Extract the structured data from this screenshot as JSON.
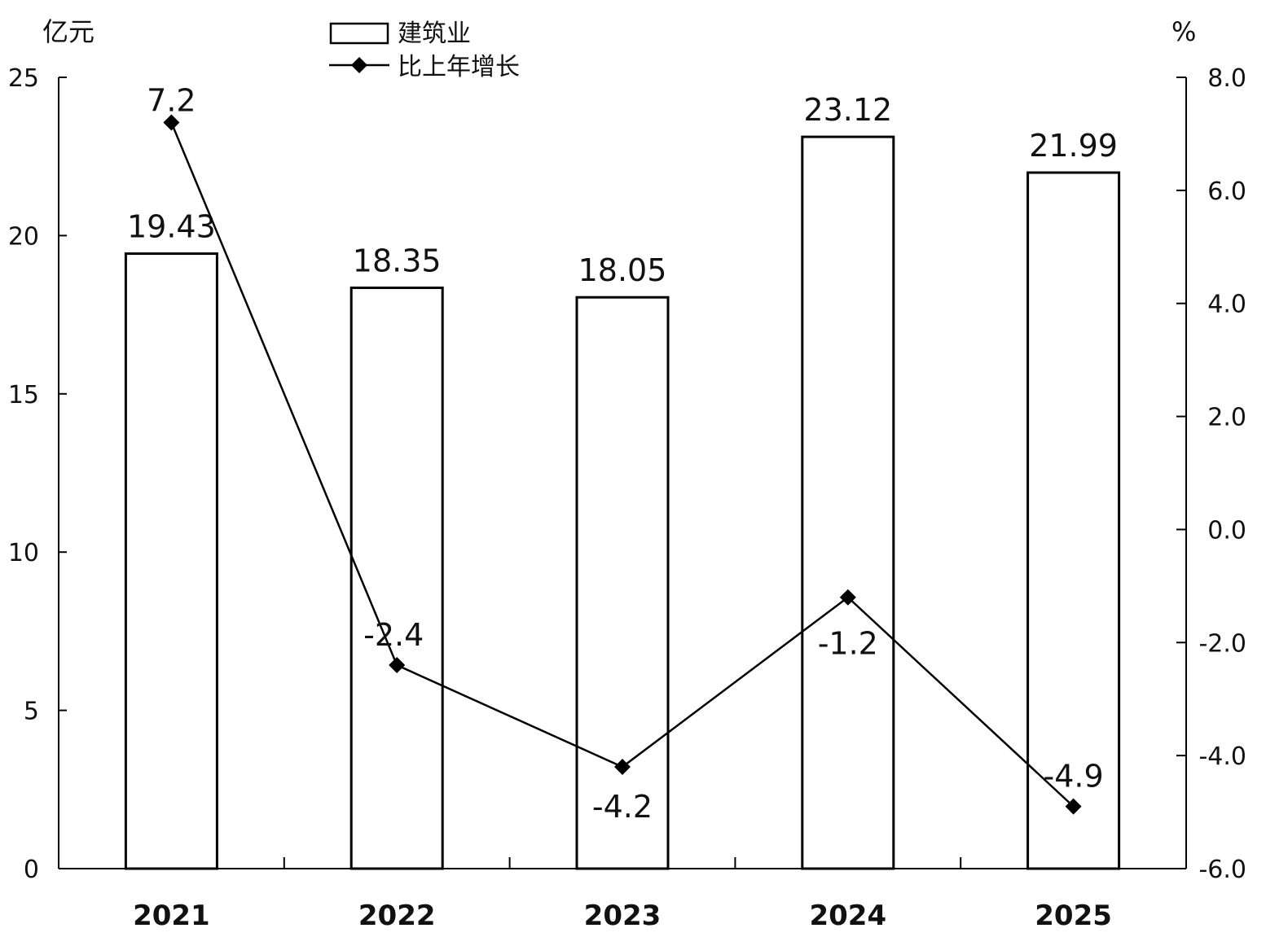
{
  "chart_data": {
    "type": "bar",
    "categories": [
      "2021",
      "2022",
      "2023",
      "2024",
      "2025"
    ],
    "series": [
      {
        "name": "建筑业",
        "type": "bar",
        "axis": "left",
        "values": [
          19.43,
          18.35,
          18.05,
          23.12,
          21.99
        ],
        "labels": [
          "19.43",
          "18.35",
          "18.05",
          "23.12",
          "21.99"
        ]
      },
      {
        "name": "比上年增长",
        "type": "line",
        "axis": "right",
        "marker": "diamond",
        "values": [
          7.2,
          -2.4,
          -4.2,
          -1.2,
          -4.9
        ],
        "labels": [
          "7.2",
          "-2.4",
          "-4.2",
          "-1.2",
          "-4.9"
        ]
      }
    ],
    "y_left": {
      "unit": "亿元",
      "ylim": [
        0,
        25
      ],
      "ticks": [
        "0",
        "5",
        "10",
        "15",
        "20",
        "25"
      ]
    },
    "y_right": {
      "unit": "%",
      "ylim": [
        -6.0,
        8.0
      ],
      "ticks": [
        "-6.0",
        "-4.0",
        "-2.0",
        "0.0",
        "2.0",
        "4.0",
        "6.0",
        "8.0"
      ]
    },
    "legend_position": "top-center",
    "grid": false
  }
}
